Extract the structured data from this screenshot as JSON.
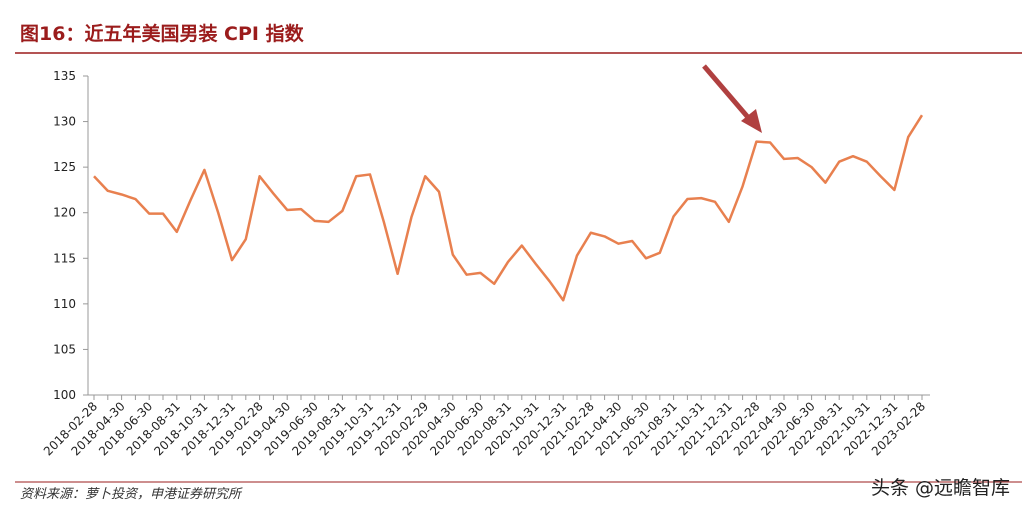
{
  "chart_data": {
    "type": "line",
    "title": "图16：近五年美国男装 CPI 指数",
    "source": "资料来源：萝卜投资，申港证券研究所",
    "watermark": "头条 @远瞻智库",
    "categories": [
      "2018-02-28",
      null,
      "2018-04-30",
      null,
      "2018-06-30",
      null,
      "2018-08-31",
      null,
      "2018-10-31",
      null,
      "2018-12-31",
      null,
      "2019-02-28",
      null,
      "2019-04-30",
      null,
      "2019-06-30",
      null,
      "2019-08-31",
      null,
      "2019-10-31",
      null,
      "2019-12-31",
      null,
      "2020-02-29",
      null,
      "2020-04-30",
      null,
      "2020-06-30",
      null,
      "2020-08-31",
      null,
      "2020-10-31",
      null,
      "2020-12-31",
      null,
      "2021-02-28",
      null,
      "2021-04-30",
      null,
      "2021-06-30",
      null,
      "2021-08-31",
      null,
      "2021-10-31",
      null,
      "2021-12-31",
      null,
      "2022-02-28",
      null,
      "2022-04-30",
      null,
      "2022-06-30",
      null,
      "2022-08-31",
      null,
      "2022-10-31",
      null,
      "2022-12-31",
      null,
      "2023-02-28"
    ],
    "series": [
      {
        "name": "美国男装 CPI",
        "color": "#e8804f",
        "values": [
          124.0,
          122.4,
          122.0,
          121.5,
          119.9,
          119.9,
          117.9,
          121.4,
          124.7,
          120.0,
          114.8,
          117.1,
          124.0,
          122.1,
          120.3,
          120.4,
          119.1,
          119.0,
          120.2,
          124.0,
          124.2,
          119.0,
          113.3,
          119.5,
          124.0,
          122.3,
          115.4,
          113.2,
          113.4,
          112.2,
          114.6,
          116.4,
          114.4,
          112.5,
          110.4,
          115.3,
          117.8,
          117.4,
          116.6,
          116.9,
          115.0,
          115.6,
          119.6,
          121.5,
          121.6,
          121.2,
          119.0,
          122.9,
          127.8,
          127.7,
          125.9,
          126.0,
          125.0,
          123.3,
          125.6,
          126.2,
          125.6,
          124.0,
          122.5,
          128.3,
          130.7
        ]
      }
    ],
    "ylim": [
      100,
      135
    ],
    "yticks": [
      100,
      105,
      110,
      115,
      120,
      125,
      130,
      135
    ],
    "grid": false
  }
}
